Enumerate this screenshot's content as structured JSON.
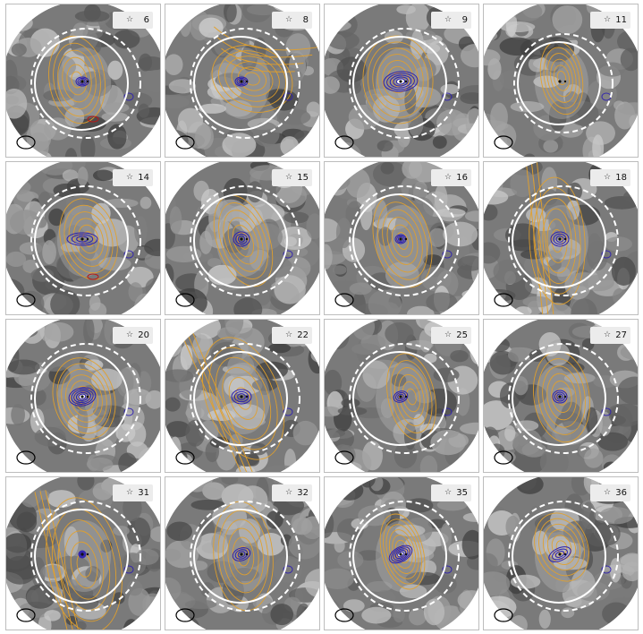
{
  "colors": {
    "background": "#ffffff",
    "panel_border": "#bdbdbd",
    "map_dark": "#303030",
    "map_light": "#e0e0e0",
    "orange_contours": "#e3a02a",
    "blue_contours": "#2d1fb0",
    "red_contours": "#b51a1a",
    "circles": "#ffffff",
    "beam": "#000000",
    "tag_bg": "#ececec"
  },
  "legend_symbol": "star",
  "panels": [
    {
      "id": "6"
    },
    {
      "id": "8"
    },
    {
      "id": "9"
    },
    {
      "id": "11"
    },
    {
      "id": "14"
    },
    {
      "id": "15"
    },
    {
      "id": "16"
    },
    {
      "id": "18"
    },
    {
      "id": "20"
    },
    {
      "id": "22"
    },
    {
      "id": "25"
    },
    {
      "id": "27"
    },
    {
      "id": "31"
    },
    {
      "id": "32"
    },
    {
      "id": "35"
    },
    {
      "id": "36"
    }
  ]
}
